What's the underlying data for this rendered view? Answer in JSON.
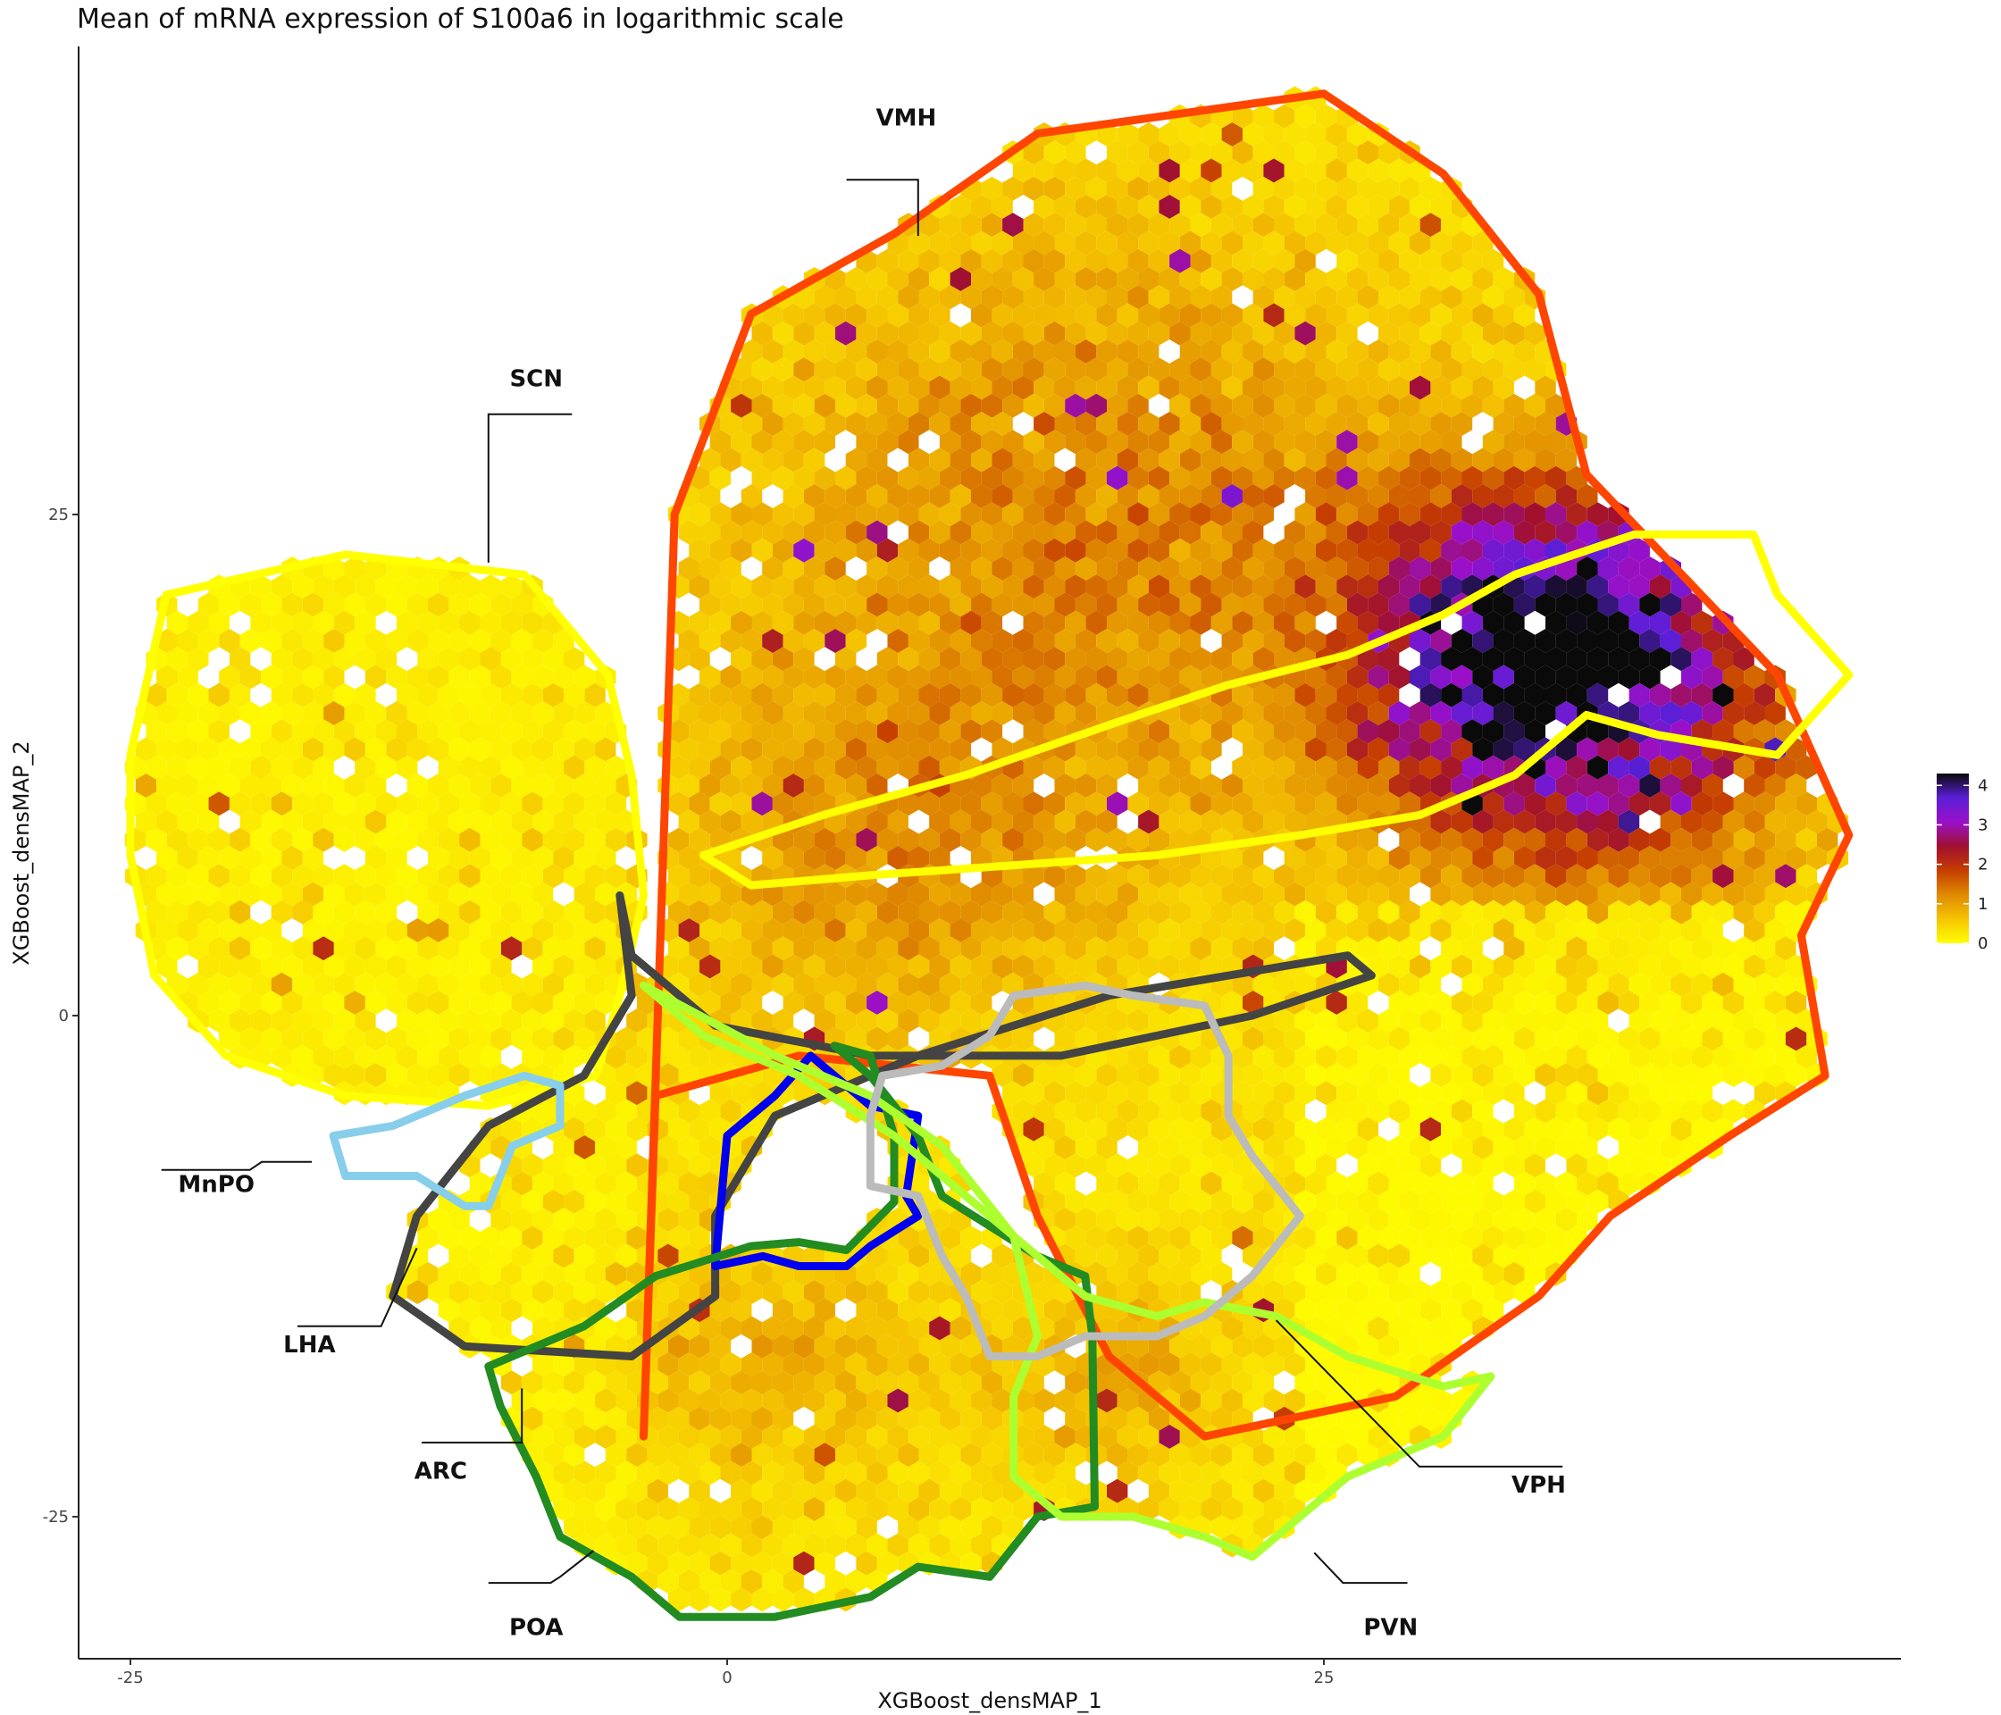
{
  "chart_data": {
    "type": "heatmap",
    "subtype": "hexbin",
    "title": "Mean of mRNA expression of S100a6 in logarithmic scale",
    "xlabel": "XGBoost_densMAP_1",
    "ylabel": "XGBoost_densMAP_2",
    "xlim": [
      -27,
      49
    ],
    "ylim": [
      -32,
      48
    ],
    "xticks": [
      -25,
      0,
      25
    ],
    "yticks": [
      -25,
      0,
      25
    ],
    "grid": false,
    "color_scale": {
      "min": 0,
      "max": 4.3,
      "ticks": [
        0,
        1,
        2,
        3,
        4
      ],
      "colors": [
        "#ffff00",
        "#f5c400",
        "#e08a00",
        "#c53d00",
        "#a01030",
        "#9a10c8",
        "#5a1fd8",
        "#0a0a0a"
      ]
    },
    "legend_position": "right",
    "hotspots": [
      {
        "x": 34,
        "y": 19,
        "value": 3.6,
        "spread": 7
      },
      {
        "x": 36,
        "y": 15,
        "value": 2.3,
        "spread": 9
      },
      {
        "x": 15,
        "y": 25,
        "value": 1.1,
        "spread": 14
      },
      {
        "x": 7,
        "y": 8,
        "value": 0.9,
        "spread": 9
      },
      {
        "x": 2,
        "y": -17,
        "value": 0.6,
        "spread": 6
      },
      {
        "x": 16,
        "y": -18,
        "value": 0.7,
        "spread": 5
      }
    ],
    "regions": [
      {
        "name": "VMH",
        "color": "#ff4500",
        "outline": [
          [
            -3.5,
            -21
          ],
          [
            -2.2,
            25
          ],
          [
            1,
            35
          ],
          [
            7,
            39
          ],
          [
            13,
            44
          ],
          [
            19,
            45
          ],
          [
            25,
            46
          ],
          [
            30,
            42
          ],
          [
            34,
            36
          ],
          [
            36,
            27
          ],
          [
            44,
            17
          ],
          [
            47,
            9
          ],
          [
            45,
            4
          ],
          [
            46,
            -3
          ],
          [
            42,
            -6
          ],
          [
            37,
            -10
          ],
          [
            34,
            -14
          ],
          [
            28,
            -19
          ],
          [
            20,
            -21
          ],
          [
            16,
            -17
          ],
          [
            13,
            -10
          ],
          [
            11,
            -3
          ],
          [
            3,
            -2
          ],
          [
            -3,
            -4
          ]
        ],
        "label": "VMH",
        "label_x": 7.5,
        "label_y": 44.4,
        "leader": [
          [
            5,
            41.7
          ],
          [
            8,
            41.7
          ],
          [
            8,
            38.9
          ]
        ]
      },
      {
        "name": "SCN",
        "color": "#ffff00",
        "outline": [
          [
            -23.5,
            21
          ],
          [
            -16,
            23
          ],
          [
            -8.5,
            22
          ],
          [
            -5,
            17
          ],
          [
            -4,
            12
          ],
          [
            -3.5,
            6
          ],
          [
            -4.5,
            1
          ],
          [
            -5.5,
            -3
          ],
          [
            -10,
            -4.5
          ],
          [
            -16,
            -4
          ],
          [
            -21,
            -2
          ],
          [
            -24,
            2
          ],
          [
            -25,
            8
          ],
          [
            -25,
            13
          ]
        ],
        "label": "SCN",
        "label_x": -8,
        "label_y": 31.4,
        "leader": [
          [
            -10,
            22.6
          ],
          [
            -10,
            30
          ],
          [
            -6.5,
            30
          ]
        ]
      },
      {
        "name": "VPH",
        "color": "#ffff00",
        "outline": [
          [
            -1,
            8
          ],
          [
            4,
            10
          ],
          [
            10,
            12
          ],
          [
            16,
            14.5
          ],
          [
            21,
            16.5
          ],
          [
            26,
            18
          ],
          [
            30,
            20
          ],
          [
            33,
            22
          ],
          [
            38,
            24
          ],
          [
            43,
            24
          ],
          [
            44,
            21
          ],
          [
            47,
            17
          ],
          [
            44,
            13
          ],
          [
            39,
            14
          ],
          [
            36,
            15
          ],
          [
            33,
            12
          ],
          [
            29,
            10
          ],
          [
            24,
            9
          ],
          [
            18,
            8
          ],
          [
            12,
            7.5
          ],
          [
            6,
            7
          ],
          [
            1,
            6.5
          ]
        ],
        "label": "VPH",
        "label_x": 34,
        "label_y": -23.8,
        "leader": [
          [
            23,
            -15.2
          ],
          [
            29,
            -22.5
          ],
          [
            35,
            -22.5
          ]
        ]
      },
      {
        "name": "LHA",
        "color": "#444444",
        "outline": [
          [
            -4.5,
            6
          ],
          [
            -4,
            1
          ],
          [
            -6,
            -3
          ],
          [
            -10,
            -5.5
          ],
          [
            -13,
            -10
          ],
          [
            -14,
            -14
          ],
          [
            -11,
            -16.5
          ],
          [
            -4,
            -17
          ],
          [
            -0.5,
            -14
          ],
          [
            -0.5,
            -10
          ],
          [
            2,
            -5
          ],
          [
            8,
            -2
          ],
          [
            16,
            1
          ],
          [
            26,
            3
          ],
          [
            27,
            2
          ],
          [
            22,
            0
          ],
          [
            14,
            -2
          ],
          [
            6,
            -2
          ],
          [
            -0.5,
            -0.5
          ],
          [
            -2,
            1
          ],
          [
            -4,
            3
          ]
        ],
        "label": "LHA",
        "label_x": -17.5,
        "label_y": -16.8,
        "leader": [
          [
            -13,
            -11.6
          ],
          [
            -14.5,
            -15.5
          ],
          [
            -18,
            -15.5
          ]
        ]
      },
      {
        "name": "ARC",
        "color": "#0000ee",
        "outline": [
          [
            -0.5,
            -12.5
          ],
          [
            0,
            -6
          ],
          [
            2,
            -4
          ],
          [
            3.5,
            -2
          ],
          [
            6,
            -4.5
          ],
          [
            8,
            -5
          ],
          [
            7.5,
            -9
          ],
          [
            8,
            -10
          ],
          [
            6,
            -11.5
          ],
          [
            5,
            -12.5
          ],
          [
            3,
            -12.5
          ],
          [
            1.5,
            -12
          ]
        ],
        "label": "ARC",
        "label_x": -12,
        "label_y": -23.1,
        "leader": [
          [
            -8.6,
            -18.6
          ],
          [
            -8.6,
            -21.3
          ],
          [
            -12.8,
            -21.3
          ]
        ]
      },
      {
        "name": "MnPO",
        "color": "#87ceeb",
        "outline": [
          [
            -16,
            -8
          ],
          [
            -13,
            -8
          ],
          [
            -11,
            -9.5
          ],
          [
            -10,
            -9.5
          ],
          [
            -9,
            -6.5
          ],
          [
            -7,
            -5.5
          ],
          [
            -7,
            -3.5
          ],
          [
            -8.5,
            -3
          ],
          [
            -11,
            -4
          ],
          [
            -14,
            -5.5
          ],
          [
            -16.5,
            -6
          ]
        ],
        "label": "MnPO",
        "label_x": -21.4,
        "label_y": -8.8,
        "leader": [
          [
            -17.4,
            -7.3
          ],
          [
            -19.5,
            -7.3
          ],
          [
            -20,
            -7.7
          ],
          [
            -23.7,
            -7.7
          ]
        ]
      },
      {
        "name": "POA",
        "color": "#228b22",
        "outline": [
          [
            -10,
            -17.5
          ],
          [
            -6,
            -15.5
          ],
          [
            -3,
            -13
          ],
          [
            1,
            -11.5
          ],
          [
            3,
            -11.3
          ],
          [
            5,
            -11.7
          ],
          [
            7,
            -9.3
          ],
          [
            7,
            -6
          ],
          [
            6,
            -2
          ],
          [
            4.5,
            -1.5
          ],
          [
            6,
            -3
          ],
          [
            8,
            -6
          ],
          [
            9,
            -9
          ],
          [
            11,
            -10.5
          ],
          [
            13,
            -12
          ],
          [
            15,
            -13
          ],
          [
            15.3,
            -16
          ],
          [
            15.4,
            -24.5
          ],
          [
            13,
            -25
          ],
          [
            11,
            -28
          ],
          [
            8,
            -27.5
          ],
          [
            6,
            -29
          ],
          [
            2,
            -30
          ],
          [
            -2,
            -30
          ],
          [
            -4,
            -28
          ],
          [
            -7,
            -26
          ],
          [
            -8,
            -23
          ],
          [
            -9.5,
            -19.5
          ]
        ],
        "label": "POA",
        "label_x": -8,
        "label_y": -30.9,
        "leader": [
          [
            -5.6,
            -26.7
          ],
          [
            -7,
            -28
          ],
          [
            -7.4,
            -28.3
          ],
          [
            -10,
            -28.3
          ]
        ]
      },
      {
        "name": "PVN",
        "color": "#adff2f",
        "outline": [
          [
            -3.5,
            1.5
          ],
          [
            2,
            -2
          ],
          [
            6,
            -4
          ],
          [
            9,
            -6.5
          ],
          [
            12,
            -11
          ],
          [
            15,
            -14
          ],
          [
            18,
            -15
          ],
          [
            20,
            -14.3
          ],
          [
            23,
            -15
          ],
          [
            26,
            -17
          ],
          [
            30,
            -18.5
          ],
          [
            32,
            -18
          ],
          [
            30,
            -21
          ],
          [
            26,
            -23
          ],
          [
            22,
            -27
          ],
          [
            20,
            -26
          ],
          [
            17,
            -25
          ],
          [
            14,
            -25
          ],
          [
            12,
            -23
          ],
          [
            12,
            -19
          ],
          [
            13,
            -16
          ],
          [
            12,
            -11
          ],
          [
            10,
            -9
          ],
          [
            7,
            -6
          ],
          [
            3,
            -3
          ],
          [
            -1,
            -1
          ]
        ],
        "label": "PVN",
        "label_x": 27.8,
        "label_y": -30.9,
        "leader": [
          [
            24.6,
            -26.8
          ],
          [
            25.8,
            -28.3
          ],
          [
            28.5,
            -28.3
          ]
        ]
      },
      {
        "name": "LHA-extra",
        "color": "#bbbbbb",
        "outline": [
          [
            6.5,
            -3
          ],
          [
            9,
            -2.5
          ],
          [
            11,
            -1
          ],
          [
            12,
            1
          ],
          [
            15,
            1.5
          ],
          [
            17,
            1
          ],
          [
            20,
            0.5
          ],
          [
            21,
            -2
          ],
          [
            21,
            -5
          ],
          [
            22,
            -7
          ],
          [
            24,
            -10
          ],
          [
            22,
            -13
          ],
          [
            20,
            -15
          ],
          [
            18,
            -16
          ],
          [
            15,
            -16
          ],
          [
            13,
            -17
          ],
          [
            11,
            -17
          ],
          [
            10,
            -14
          ],
          [
            9,
            -12
          ],
          [
            8,
            -9
          ],
          [
            6,
            -8.5
          ],
          [
            6,
            -5
          ]
        ]
      }
    ]
  }
}
